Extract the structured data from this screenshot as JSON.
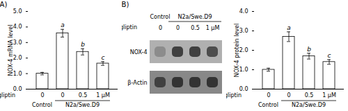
{
  "chart_data": [
    {
      "type": "bar",
      "title": "(A)",
      "categories": [
        "0",
        "0",
        "0.5",
        "1 μM"
      ],
      "xlabel": "anagliptin",
      "group_labels": [
        "Control",
        "N2a/Swe.D9",
        "N2a/Swe.D9",
        "N2a/Swe.D9"
      ],
      "values": [
        1.0,
        3.6,
        2.4,
        1.65
      ],
      "errors": [
        0.08,
        0.25,
        0.2,
        0.12
      ],
      "significance_labels": [
        null,
        "a",
        "b",
        "c"
      ],
      "color": "white",
      "ylabel": "NOX-4 mRNA level",
      "ylim": [
        0,
        5
      ],
      "yticks": [
        0,
        1,
        2,
        3,
        4,
        5
      ]
    },
    {
      "type": "blot",
      "title": "(B)",
      "categories": [
        "0",
        "0",
        "0.5",
        "1 μM"
      ],
      "xlabel": "anagliptin",
      "group_labels": [
        "Control",
        "N2a/Swe.D9",
        "N2a/Swe.D9",
        "N2a/Swe.D9"
      ],
      "rows": [
        "NOX-4",
        "β-Actin"
      ],
      "cells": [
        [
          0.55,
          0.25,
          0.25,
          0.3
        ],
        [
          0.25,
          0.2,
          0.2,
          0.2
        ]
      ],
      "colors": [
        "#b0b0b0",
        "#888888"
      ]
    },
    {
      "type": "bar",
      "categories": [
        "0",
        "0",
        "0.5",
        "1 μM"
      ],
      "xlabel": "anagliptin",
      "group_labels": [
        "Control",
        "N2a/Swe.D9",
        "N2a/Swe.D9",
        "N2a/Swe.D9"
      ],
      "values": [
        1.0,
        2.7,
        1.7,
        1.4
      ],
      "errors": [
        0.08,
        0.25,
        0.15,
        0.12
      ],
      "significance_labels": [
        null,
        "a",
        "b",
        "c"
      ],
      "color": "white",
      "ylabel": "NOX-4 protein level",
      "ylim": [
        0,
        4
      ],
      "yticks": [
        0,
        1,
        2,
        3,
        4
      ]
    }
  ]
}
